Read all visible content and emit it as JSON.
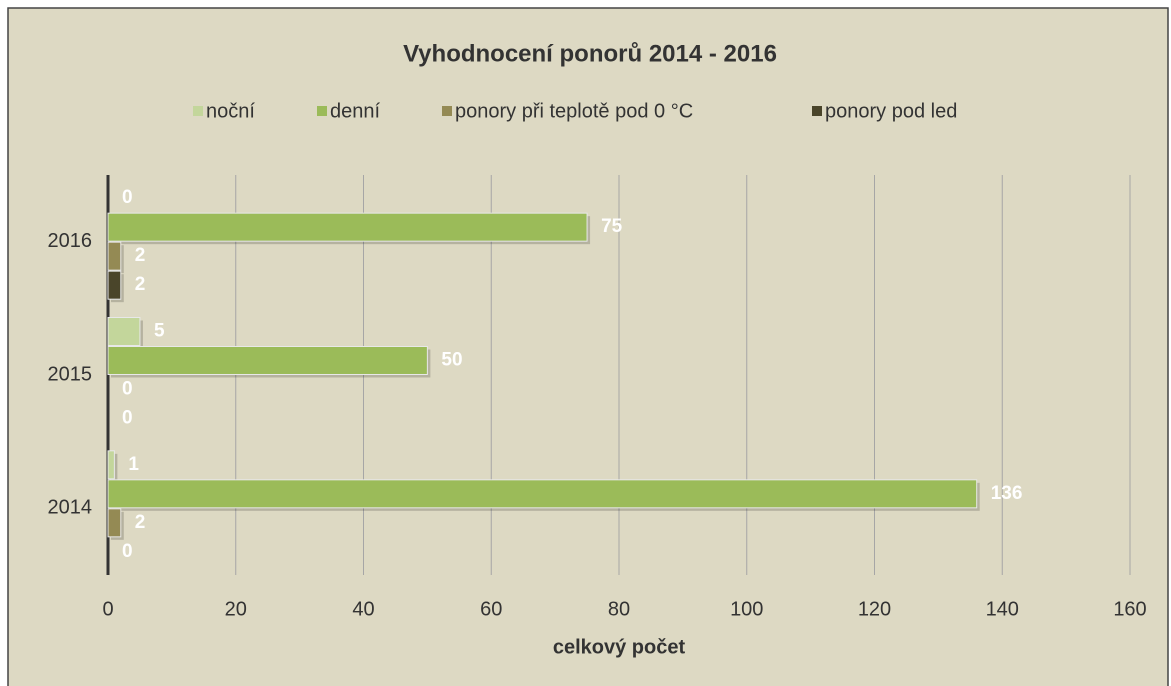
{
  "chart_data": {
    "type": "barh",
    "title": "Vyhodnocení ponorů 2014 - 2016",
    "xlabel": "celkový počet",
    "categories": [
      "2014",
      "2015",
      "2016"
    ],
    "series": [
      {
        "name": "noční",
        "color": "#c3d69b",
        "values": [
          1,
          5,
          0
        ]
      },
      {
        "name": "denní",
        "color": "#9bbb59",
        "values": [
          136,
          50,
          75
        ]
      },
      {
        "name": "ponory při teplotě pod 0 °C",
        "color": "#948a54",
        "values": [
          2,
          0,
          2
        ]
      },
      {
        "name": "ponory pod led",
        "color": "#4a452a",
        "values": [
          0,
          0,
          2
        ]
      }
    ],
    "xlim": [
      0,
      160
    ],
    "xticks": [
      0,
      20,
      40,
      60,
      80,
      100,
      120,
      140,
      160
    ],
    "grid": true,
    "legend": "top"
  }
}
